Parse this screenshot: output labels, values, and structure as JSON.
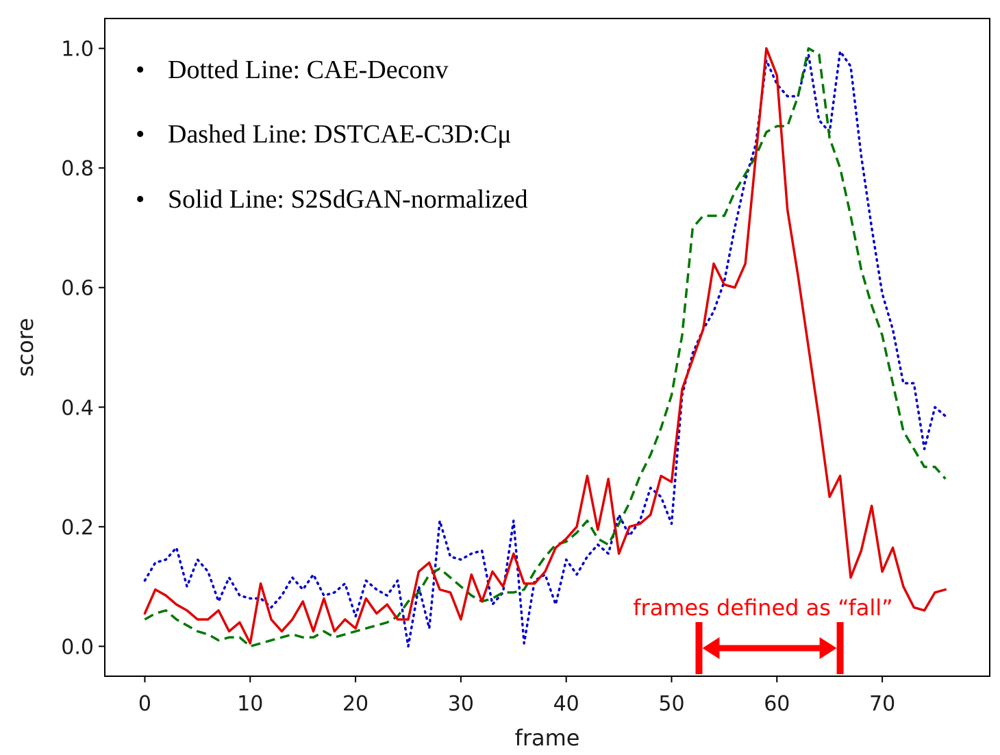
{
  "chart_data": {
    "type": "line",
    "title": "",
    "xlabel": "frame",
    "ylabel": "score",
    "xlim": [
      -3.8,
      80.2
    ],
    "ylim": [
      -0.05,
      1.05
    ],
    "xticks": [
      0,
      10,
      20,
      30,
      40,
      50,
      60,
      70
    ],
    "yticks": [
      "0.0",
      "0.2",
      "0.4",
      "0.6",
      "0.8",
      "1.0"
    ],
    "ytick_values": [
      0.0,
      0.2,
      0.4,
      0.6,
      0.8,
      1.0
    ],
    "legend": [
      {
        "bullet": "•",
        "text": "Dotted Line: CAE-Deconv"
      },
      {
        "bullet": "•",
        "text": "Dashed Line: DSTCAE-C3D:Cμ"
      },
      {
        "bullet": "•",
        "text": "Solid Line: S2SdGAN-normalized"
      }
    ],
    "annotation": {
      "text": "frames defined as “fall”",
      "x_start": 52.6,
      "x_end": 66.0,
      "color": "#ff0000"
    },
    "series": [
      {
        "name": "CAE-Deconv",
        "style": "dotted",
        "color": "#0000cc",
        "x": [
          0,
          1,
          2,
          3,
          4,
          5,
          6,
          7,
          8,
          9,
          10,
          11,
          12,
          13,
          14,
          15,
          16,
          17,
          18,
          19,
          20,
          21,
          22,
          23,
          24,
          25,
          26,
          27,
          28,
          29,
          30,
          31,
          32,
          33,
          34,
          35,
          36,
          37,
          38,
          39,
          40,
          41,
          42,
          43,
          44,
          45,
          46,
          47,
          48,
          49,
          50,
          51,
          52,
          53,
          54,
          55,
          56,
          57,
          58,
          59,
          60,
          61,
          62,
          63,
          64,
          65,
          66,
          67,
          68,
          69,
          70,
          71,
          72,
          73,
          74,
          75,
          76
        ],
        "values": [
          0.11,
          0.14,
          0.145,
          0.165,
          0.1,
          0.145,
          0.125,
          0.075,
          0.115,
          0.085,
          0.08,
          0.08,
          0.065,
          0.085,
          0.115,
          0.095,
          0.12,
          0.085,
          0.09,
          0.105,
          0.05,
          0.11,
          0.095,
          0.085,
          0.11,
          0.0,
          0.1,
          0.03,
          0.21,
          0.15,
          0.145,
          0.155,
          0.16,
          0.07,
          0.09,
          0.21,
          0.005,
          0.11,
          0.12,
          0.07,
          0.145,
          0.12,
          0.15,
          0.17,
          0.155,
          0.22,
          0.185,
          0.21,
          0.265,
          0.25,
          0.205,
          0.42,
          0.49,
          0.53,
          0.56,
          0.61,
          0.7,
          0.78,
          0.84,
          0.98,
          0.94,
          0.92,
          0.92,
          0.99,
          0.88,
          0.86,
          0.995,
          0.97,
          0.82,
          0.7,
          0.59,
          0.53,
          0.44,
          0.44,
          0.33,
          0.4,
          0.385
        ]
      },
      {
        "name": "DSTCAE-C3D:Cμ",
        "style": "dashed",
        "color": "#007700",
        "x": [
          0,
          1,
          2,
          3,
          4,
          5,
          6,
          7,
          8,
          9,
          10,
          11,
          12,
          13,
          14,
          15,
          16,
          17,
          18,
          19,
          20,
          21,
          22,
          23,
          24,
          25,
          26,
          27,
          28,
          29,
          30,
          31,
          32,
          33,
          34,
          35,
          36,
          37,
          38,
          39,
          40,
          41,
          42,
          43,
          44,
          45,
          46,
          47,
          48,
          49,
          50,
          51,
          52,
          53,
          54,
          55,
          56,
          57,
          58,
          59,
          60,
          61,
          62,
          63,
          64,
          65,
          66,
          67,
          68,
          69,
          70,
          71,
          72,
          73,
          74,
          75,
          76
        ],
        "values": [
          0.045,
          0.055,
          0.06,
          0.045,
          0.035,
          0.025,
          0.02,
          0.01,
          0.015,
          0.015,
          0.0,
          0.005,
          0.01,
          0.015,
          0.02,
          0.015,
          0.015,
          0.025,
          0.015,
          0.02,
          0.025,
          0.03,
          0.035,
          0.04,
          0.05,
          0.075,
          0.09,
          0.12,
          0.13,
          0.115,
          0.1,
          0.085,
          0.075,
          0.08,
          0.09,
          0.09,
          0.095,
          0.125,
          0.15,
          0.17,
          0.175,
          0.19,
          0.21,
          0.18,
          0.17,
          0.205,
          0.24,
          0.285,
          0.32,
          0.365,
          0.42,
          0.52,
          0.7,
          0.72,
          0.72,
          0.72,
          0.76,
          0.79,
          0.82,
          0.86,
          0.87,
          0.87,
          0.92,
          1.0,
          0.99,
          0.85,
          0.8,
          0.72,
          0.63,
          0.57,
          0.52,
          0.44,
          0.36,
          0.33,
          0.3,
          0.3,
          0.28
        ]
      },
      {
        "name": "S2SdGAN-normalized",
        "style": "solid",
        "color": "#e00000",
        "x": [
          0,
          1,
          2,
          3,
          4,
          5,
          6,
          7,
          8,
          9,
          10,
          11,
          12,
          13,
          14,
          15,
          16,
          17,
          18,
          19,
          20,
          21,
          22,
          23,
          24,
          25,
          26,
          27,
          28,
          29,
          30,
          31,
          32,
          33,
          34,
          35,
          36,
          37,
          38,
          39,
          40,
          41,
          42,
          43,
          44,
          45,
          46,
          47,
          48,
          49,
          50,
          51,
          52,
          53,
          54,
          55,
          56,
          57,
          58,
          59,
          60,
          61,
          62,
          63,
          64,
          65,
          66,
          67,
          68,
          69,
          70,
          71,
          72,
          73,
          74,
          75,
          76
        ],
        "values": [
          0.055,
          0.095,
          0.085,
          0.07,
          0.06,
          0.045,
          0.045,
          0.06,
          0.025,
          0.04,
          0.005,
          0.105,
          0.045,
          0.025,
          0.045,
          0.075,
          0.025,
          0.08,
          0.025,
          0.045,
          0.03,
          0.08,
          0.055,
          0.07,
          0.045,
          0.045,
          0.125,
          0.14,
          0.095,
          0.09,
          0.045,
          0.12,
          0.075,
          0.125,
          0.1,
          0.155,
          0.105,
          0.105,
          0.125,
          0.165,
          0.18,
          0.2,
          0.285,
          0.195,
          0.28,
          0.155,
          0.2,
          0.205,
          0.22,
          0.285,
          0.275,
          0.43,
          0.48,
          0.53,
          0.64,
          0.605,
          0.6,
          0.64,
          0.82,
          1.0,
          0.955,
          0.73,
          0.62,
          0.5,
          0.38,
          0.25,
          0.285,
          0.115,
          0.16,
          0.235,
          0.125,
          0.165,
          0.1,
          0.065,
          0.06,
          0.09,
          0.095
        ]
      }
    ]
  }
}
